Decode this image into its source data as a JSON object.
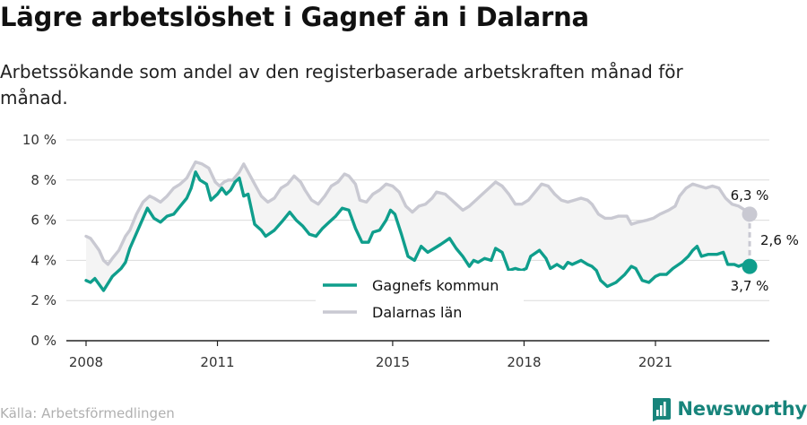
{
  "header": {
    "title": "Lägre arbetslöshet i Gagnef än i Dalarna",
    "subtitle": "Arbetssökande som andel av den registerbaserade arbetskraften månad för månad."
  },
  "footer": {
    "source": "Källa: Arbetsförmedlingen",
    "brand": "Newsworthy"
  },
  "colors": {
    "gagnef": "#0f9e8c",
    "dalarna": "#c9c9d2",
    "band": "#f4f4f4",
    "grid": "#dcdcdc",
    "brand": "#17847b"
  },
  "chart_data": {
    "type": "line",
    "title": "",
    "xlabel": "",
    "ylabel": "",
    "x_ticks": [
      2008,
      2011,
      2015,
      2018,
      2021
    ],
    "y_ticks": [
      "0 %",
      "2 %",
      "4 %",
      "6 %",
      "8 %",
      "10 %"
    ],
    "y_tick_values": [
      0,
      2,
      4,
      6,
      8,
      10
    ],
    "ylim": [
      0,
      10
    ],
    "xlim": [
      2007.6,
      2022.8
    ],
    "grid": true,
    "legend_position": "bottom-center",
    "series": [
      {
        "name": "Gagnefs kommun",
        "color": "#0f9e8c",
        "points": [
          [
            2008.0,
            3.0
          ],
          [
            2008.1,
            2.9
          ],
          [
            2008.2,
            3.1
          ],
          [
            2008.4,
            2.5
          ],
          [
            2008.6,
            3.2
          ],
          [
            2008.8,
            3.6
          ],
          [
            2008.9,
            3.9
          ],
          [
            2009.0,
            4.6
          ],
          [
            2009.2,
            5.6
          ],
          [
            2009.4,
            6.6
          ],
          [
            2009.55,
            6.1
          ],
          [
            2009.7,
            5.9
          ],
          [
            2009.85,
            6.2
          ],
          [
            2010.0,
            6.3
          ],
          [
            2010.15,
            6.7
          ],
          [
            2010.3,
            7.1
          ],
          [
            2010.4,
            7.6
          ],
          [
            2010.5,
            8.4
          ],
          [
            2010.6,
            8.0
          ],
          [
            2010.75,
            7.8
          ],
          [
            2010.85,
            7.0
          ],
          [
            2011.0,
            7.3
          ],
          [
            2011.1,
            7.6
          ],
          [
            2011.2,
            7.3
          ],
          [
            2011.3,
            7.5
          ],
          [
            2011.4,
            7.9
          ],
          [
            2011.5,
            8.1
          ],
          [
            2011.6,
            7.2
          ],
          [
            2011.7,
            7.3
          ],
          [
            2011.85,
            5.8
          ],
          [
            2012.0,
            5.5
          ],
          [
            2012.1,
            5.2
          ],
          [
            2012.3,
            5.5
          ],
          [
            2012.5,
            6.0
          ],
          [
            2012.65,
            6.4
          ],
          [
            2012.8,
            6.0
          ],
          [
            2012.95,
            5.7
          ],
          [
            2013.1,
            5.3
          ],
          [
            2013.25,
            5.2
          ],
          [
            2013.4,
            5.6
          ],
          [
            2013.55,
            5.9
          ],
          [
            2013.7,
            6.2
          ],
          [
            2013.85,
            6.6
          ],
          [
            2014.0,
            6.5
          ],
          [
            2014.15,
            5.6
          ],
          [
            2014.3,
            4.9
          ],
          [
            2014.45,
            4.9
          ],
          [
            2014.55,
            5.4
          ],
          [
            2014.7,
            5.5
          ],
          [
            2014.85,
            6.0
          ],
          [
            2014.95,
            6.5
          ],
          [
            2015.05,
            6.3
          ],
          [
            2015.2,
            5.3
          ],
          [
            2015.35,
            4.2
          ],
          [
            2015.5,
            4.0
          ],
          [
            2015.65,
            4.7
          ],
          [
            2015.8,
            4.4
          ],
          [
            2015.95,
            4.6
          ],
          [
            2016.1,
            4.8
          ],
          [
            2016.3,
            5.1
          ],
          [
            2016.45,
            4.6
          ],
          [
            2016.6,
            4.2
          ],
          [
            2016.75,
            3.7
          ],
          [
            2016.85,
            4.0
          ],
          [
            2016.95,
            3.9
          ],
          [
            2017.1,
            4.1
          ],
          [
            2017.25,
            4.0
          ],
          [
            2017.35,
            4.6
          ],
          [
            2017.5,
            4.4
          ],
          [
            2017.65,
            3.5
          ],
          [
            2017.8,
            3.6
          ],
          [
            2017.95,
            3.5
          ],
          [
            2018.05,
            3.6
          ],
          [
            2018.15,
            4.2
          ],
          [
            2018.35,
            4.5
          ],
          [
            2018.5,
            4.1
          ],
          [
            2018.6,
            3.6
          ],
          [
            2018.75,
            3.8
          ],
          [
            2018.9,
            3.6
          ],
          [
            2019.0,
            3.9
          ],
          [
            2019.1,
            3.8
          ],
          [
            2019.3,
            4.0
          ],
          [
            2019.45,
            3.8
          ],
          [
            2019.55,
            3.7
          ],
          [
            2019.65,
            3.5
          ],
          [
            2019.75,
            3.0
          ],
          [
            2019.9,
            2.7
          ],
          [
            2020.1,
            2.9
          ],
          [
            2020.3,
            3.3
          ],
          [
            2020.45,
            3.7
          ],
          [
            2020.55,
            3.6
          ],
          [
            2020.7,
            3.0
          ],
          [
            2020.85,
            2.9
          ],
          [
            2021.0,
            3.2
          ],
          [
            2021.1,
            3.3
          ],
          [
            2021.25,
            3.3
          ],
          [
            2021.4,
            3.6
          ],
          [
            2021.6,
            3.9
          ],
          [
            2021.75,
            4.2
          ],
          [
            2021.85,
            4.5
          ],
          [
            2021.95,
            4.7
          ],
          [
            2022.05,
            4.2
          ],
          [
            2022.2,
            4.3
          ],
          [
            2022.4,
            4.3
          ],
          [
            2022.55,
            4.4
          ],
          [
            2022.65,
            3.8
          ],
          [
            2022.8,
            3.8
          ],
          [
            2022.9,
            3.7
          ],
          [
            2023.0,
            3.8
          ],
          [
            2023.15,
            3.7
          ]
        ],
        "end_label": "3,7 %"
      },
      {
        "name": "Dalarnas län",
        "color": "#c9c9d2",
        "points": [
          [
            2008.0,
            5.2
          ],
          [
            2008.1,
            5.1
          ],
          [
            2008.2,
            4.8
          ],
          [
            2008.3,
            4.5
          ],
          [
            2008.4,
            4.0
          ],
          [
            2008.5,
            3.8
          ],
          [
            2008.6,
            4.1
          ],
          [
            2008.75,
            4.5
          ],
          [
            2008.9,
            5.2
          ],
          [
            2009.0,
            5.5
          ],
          [
            2009.15,
            6.3
          ],
          [
            2009.3,
            6.9
          ],
          [
            2009.45,
            7.2
          ],
          [
            2009.55,
            7.1
          ],
          [
            2009.7,
            6.9
          ],
          [
            2009.85,
            7.2
          ],
          [
            2010.0,
            7.6
          ],
          [
            2010.15,
            7.8
          ],
          [
            2010.3,
            8.1
          ],
          [
            2010.4,
            8.5
          ],
          [
            2010.5,
            8.9
          ],
          [
            2010.65,
            8.8
          ],
          [
            2010.8,
            8.6
          ],
          [
            2010.95,
            7.9
          ],
          [
            2011.05,
            7.7
          ],
          [
            2011.15,
            7.9
          ],
          [
            2011.25,
            8.0
          ],
          [
            2011.35,
            8.0
          ],
          [
            2011.5,
            8.4
          ],
          [
            2011.6,
            8.8
          ],
          [
            2011.7,
            8.4
          ],
          [
            2011.85,
            7.8
          ],
          [
            2012.0,
            7.2
          ],
          [
            2012.15,
            6.9
          ],
          [
            2012.3,
            7.1
          ],
          [
            2012.45,
            7.6
          ],
          [
            2012.6,
            7.8
          ],
          [
            2012.75,
            8.2
          ],
          [
            2012.9,
            7.9
          ],
          [
            2013.0,
            7.5
          ],
          [
            2013.15,
            7.0
          ],
          [
            2013.3,
            6.8
          ],
          [
            2013.45,
            7.2
          ],
          [
            2013.6,
            7.7
          ],
          [
            2013.75,
            7.9
          ],
          [
            2013.9,
            8.3
          ],
          [
            2014.0,
            8.2
          ],
          [
            2014.15,
            7.8
          ],
          [
            2014.25,
            7.0
          ],
          [
            2014.4,
            6.9
          ],
          [
            2014.55,
            7.3
          ],
          [
            2014.7,
            7.5
          ],
          [
            2014.85,
            7.8
          ],
          [
            2015.0,
            7.7
          ],
          [
            2015.15,
            7.4
          ],
          [
            2015.3,
            6.7
          ],
          [
            2015.45,
            6.4
          ],
          [
            2015.6,
            6.7
          ],
          [
            2015.75,
            6.8
          ],
          [
            2015.9,
            7.1
          ],
          [
            2016.0,
            7.4
          ],
          [
            2016.2,
            7.3
          ],
          [
            2016.35,
            7.0
          ],
          [
            2016.5,
            6.7
          ],
          [
            2016.6,
            6.5
          ],
          [
            2016.75,
            6.7
          ],
          [
            2016.9,
            7.0
          ],
          [
            2017.05,
            7.3
          ],
          [
            2017.2,
            7.6
          ],
          [
            2017.35,
            7.9
          ],
          [
            2017.5,
            7.7
          ],
          [
            2017.65,
            7.3
          ],
          [
            2017.8,
            6.8
          ],
          [
            2017.95,
            6.8
          ],
          [
            2018.1,
            7.0
          ],
          [
            2018.25,
            7.4
          ],
          [
            2018.4,
            7.8
          ],
          [
            2018.55,
            7.7
          ],
          [
            2018.7,
            7.3
          ],
          [
            2018.85,
            7.0
          ],
          [
            2019.0,
            6.9
          ],
          [
            2019.15,
            7.0
          ],
          [
            2019.3,
            7.1
          ],
          [
            2019.45,
            7.0
          ],
          [
            2019.55,
            6.8
          ],
          [
            2019.7,
            6.3
          ],
          [
            2019.85,
            6.1
          ],
          [
            2020.0,
            6.1
          ],
          [
            2020.15,
            6.2
          ],
          [
            2020.35,
            6.2
          ],
          [
            2020.45,
            5.8
          ],
          [
            2020.6,
            5.9
          ],
          [
            2020.8,
            6.0
          ],
          [
            2020.95,
            6.1
          ],
          [
            2021.1,
            6.3
          ],
          [
            2021.3,
            6.5
          ],
          [
            2021.45,
            6.7
          ],
          [
            2021.55,
            7.2
          ],
          [
            2021.7,
            7.6
          ],
          [
            2021.85,
            7.8
          ],
          [
            2022.0,
            7.7
          ],
          [
            2022.15,
            7.6
          ],
          [
            2022.3,
            7.7
          ],
          [
            2022.45,
            7.6
          ],
          [
            2022.6,
            7.1
          ],
          [
            2022.75,
            6.8
          ],
          [
            2022.9,
            6.7
          ],
          [
            2023.05,
            6.5
          ],
          [
            2023.15,
            6.3
          ]
        ],
        "end_label": "6,3 %"
      }
    ],
    "difference_label": "2,6 %"
  }
}
